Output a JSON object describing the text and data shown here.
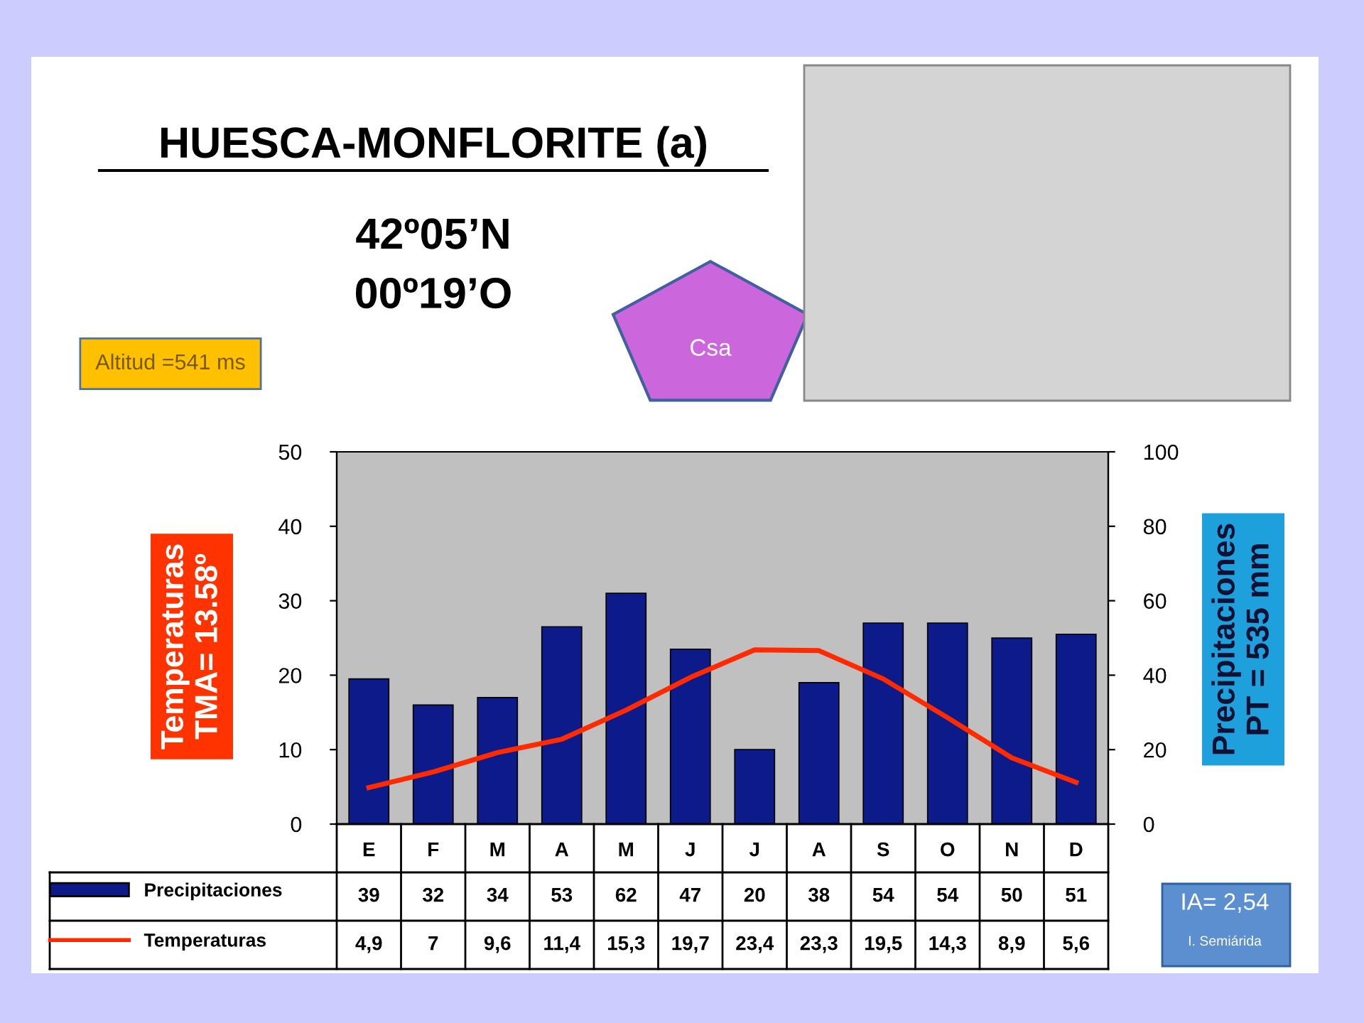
{
  "chart_data": {
    "type": "bar",
    "title": "HUESCA-MONFLORITE (a)",
    "subtitle": "42º05’N\n00º19’O",
    "ylabel": "Temperaturas\nTMA= 13.58º",
    "y2label": "Precipitaciones\nPT = 535 mm",
    "categories": [
      "E",
      "F",
      "M",
      "A",
      "M",
      "J",
      "J",
      "A",
      "S",
      "O",
      "N",
      "D"
    ],
    "series": [
      {
        "name": "Precipitaciones",
        "axis": "y2",
        "color": "#0c1a8a",
        "values": [
          39,
          32,
          34,
          53,
          62,
          47,
          20,
          38,
          54,
          54,
          50,
          51
        ],
        "value_labels": [
          "39",
          "32",
          "34",
          "53",
          "62",
          "47",
          "20",
          "38",
          "54",
          "54",
          "50",
          "51"
        ]
      },
      {
        "name": "Temperaturas",
        "type": "line",
        "color": "#ff2a00",
        "values": [
          4.9,
          7,
          9.6,
          11.4,
          15.3,
          19.7,
          23.4,
          23.3,
          19.5,
          14.3,
          8.9,
          5.6
        ],
        "value_labels": [
          "4,9",
          "7",
          "9,6",
          "11,4",
          "15,3",
          "19,7",
          "23,4",
          "23,3",
          "19,5",
          "14,3",
          "8,9",
          "5,6"
        ]
      }
    ],
    "ylim": [
      0,
      50
    ],
    "yticks": [
      0,
      10,
      20,
      30,
      40,
      50
    ],
    "y2lim": [
      0,
      100
    ],
    "y2ticks": [
      0,
      20,
      40,
      60,
      80,
      100
    ],
    "grid": false,
    "legend": "bottom left",
    "marker": "none",
    "line_style": "solid",
    "annotations": [
      "Altitud =541 ms",
      "Csa",
      "IA= 2,54",
      "I. Semiárida"
    ]
  }
}
